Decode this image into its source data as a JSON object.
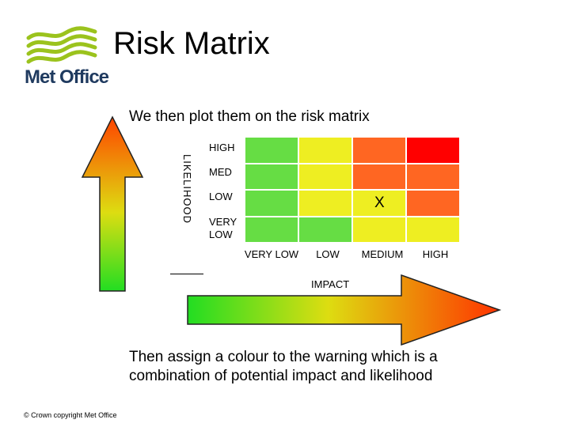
{
  "logo": {
    "text": "Met Office",
    "icon": "met-office-waves-logo",
    "brand_color": "#9bc31d"
  },
  "title": "Risk Matrix",
  "subtitle": "We then plot them on the risk matrix",
  "matrix": {
    "likelihood_axis_label": "LIKELIHOOD",
    "impact_axis_label": "IMPACT",
    "row_labels": [
      "HIGH",
      "MED",
      "LOW",
      "VERY LOW"
    ],
    "column_labels": [
      "VERY LOW",
      "LOW",
      "MEDIUM",
      "HIGH"
    ],
    "cell_colors": [
      [
        "#66dd44",
        "#eeee22",
        "#ff6622",
        "#ff0000"
      ],
      [
        "#66dd44",
        "#eeee22",
        "#ff6622",
        "#ff6622"
      ],
      [
        "#66dd44",
        "#eeee22",
        "#eeee22",
        "#ff6622"
      ],
      [
        "#66dd44",
        "#66dd44",
        "#eeee22",
        "#eeee22"
      ]
    ],
    "marker": {
      "text": "X",
      "row": 2,
      "column": 2
    }
  },
  "bottom_text": "Then assign a colour to the warning which is a combination of potential impact and likelihood",
  "footer": {
    "copyright": "© Crown copyright   Met Office"
  }
}
